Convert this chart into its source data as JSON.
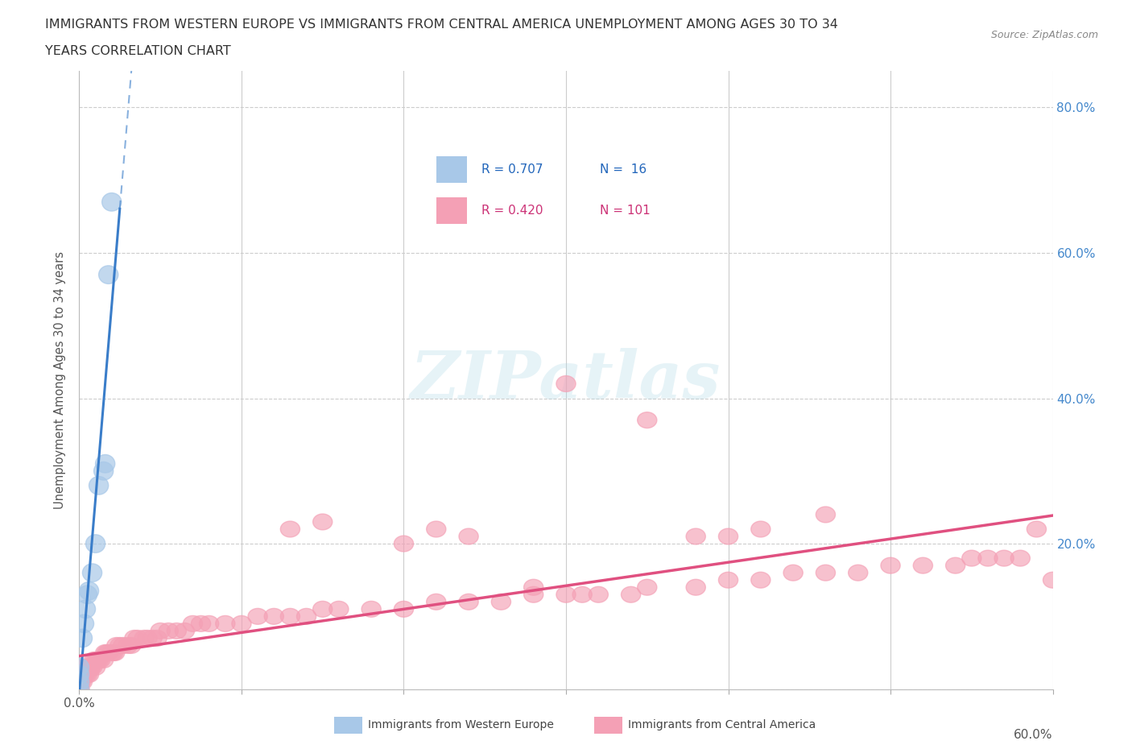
{
  "title_line1": "IMMIGRANTS FROM WESTERN EUROPE VS IMMIGRANTS FROM CENTRAL AMERICA UNEMPLOYMENT AMONG AGES 30 TO 34",
  "title_line2": "YEARS CORRELATION CHART",
  "source": "Source: ZipAtlas.com",
  "ylabel": "Unemployment Among Ages 30 to 34 years",
  "xlim": [
    0.0,
    0.6
  ],
  "ylim": [
    0.0,
    0.85
  ],
  "color_blue": "#a8c8e8",
  "color_blue_line": "#3a7dc9",
  "color_pink": "#f4a0b5",
  "color_pink_line": "#e05080",
  "color_grid": "#cccccc",
  "watermark_text": "ZIPatlas",
  "we_x": [
    0.0,
    0.0,
    0.0,
    0.0,
    0.002,
    0.003,
    0.004,
    0.005,
    0.006,
    0.008,
    0.01,
    0.012,
    0.015,
    0.016,
    0.018,
    0.02
  ],
  "we_y": [
    0.0,
    0.01,
    0.02,
    0.03,
    0.07,
    0.09,
    0.11,
    0.13,
    0.135,
    0.16,
    0.2,
    0.28,
    0.3,
    0.31,
    0.57,
    0.67
  ],
  "ca_x": [
    0.0,
    0.0,
    0.0,
    0.0,
    0.0,
    0.0,
    0.0,
    0.0,
    0.0,
    0.0,
    0.001,
    0.001,
    0.002,
    0.002,
    0.003,
    0.003,
    0.004,
    0.004,
    0.005,
    0.005,
    0.006,
    0.007,
    0.007,
    0.008,
    0.009,
    0.01,
    0.01,
    0.011,
    0.012,
    0.013,
    0.015,
    0.016,
    0.017,
    0.018,
    0.02,
    0.021,
    0.022,
    0.023,
    0.025,
    0.027,
    0.03,
    0.032,
    0.034,
    0.036,
    0.04,
    0.042,
    0.045,
    0.048,
    0.05,
    0.055,
    0.06,
    0.065,
    0.07,
    0.075,
    0.08,
    0.09,
    0.1,
    0.11,
    0.12,
    0.13,
    0.14,
    0.15,
    0.16,
    0.18,
    0.2,
    0.22,
    0.24,
    0.26,
    0.28,
    0.3,
    0.32,
    0.34,
    0.35,
    0.38,
    0.4,
    0.42,
    0.44,
    0.46,
    0.48,
    0.5,
    0.52,
    0.54,
    0.55,
    0.56,
    0.57,
    0.58,
    0.59,
    0.6,
    0.42,
    0.46,
    0.28,
    0.3,
    0.31,
    0.35,
    0.38,
    0.4,
    0.2,
    0.22,
    0.24,
    0.13,
    0.15
  ],
  "ca_y": [
    0.0,
    0.0,
    0.0,
    0.0,
    0.0,
    0.0,
    0.0,
    0.01,
    0.01,
    0.02,
    0.01,
    0.02,
    0.01,
    0.02,
    0.02,
    0.03,
    0.02,
    0.03,
    0.02,
    0.03,
    0.02,
    0.03,
    0.03,
    0.03,
    0.04,
    0.03,
    0.04,
    0.04,
    0.04,
    0.04,
    0.04,
    0.05,
    0.05,
    0.05,
    0.05,
    0.05,
    0.05,
    0.06,
    0.06,
    0.06,
    0.06,
    0.06,
    0.07,
    0.07,
    0.07,
    0.07,
    0.07,
    0.07,
    0.08,
    0.08,
    0.08,
    0.08,
    0.09,
    0.09,
    0.09,
    0.09,
    0.09,
    0.1,
    0.1,
    0.1,
    0.1,
    0.11,
    0.11,
    0.11,
    0.11,
    0.12,
    0.12,
    0.12,
    0.13,
    0.13,
    0.13,
    0.13,
    0.14,
    0.14,
    0.15,
    0.15,
    0.16,
    0.16,
    0.16,
    0.17,
    0.17,
    0.17,
    0.18,
    0.18,
    0.18,
    0.18,
    0.22,
    0.15,
    0.22,
    0.24,
    0.14,
    0.42,
    0.13,
    0.37,
    0.21,
    0.21,
    0.2,
    0.22,
    0.21,
    0.22,
    0.23
  ],
  "legend_blue_r": "R = 0.707",
  "legend_blue_n": "N =  16",
  "legend_pink_r": "R = 0.420",
  "legend_pink_n": "N = 101",
  "legend_blue_label": "Immigrants from Western Europe",
  "legend_pink_label": "Immigrants from Central America"
}
